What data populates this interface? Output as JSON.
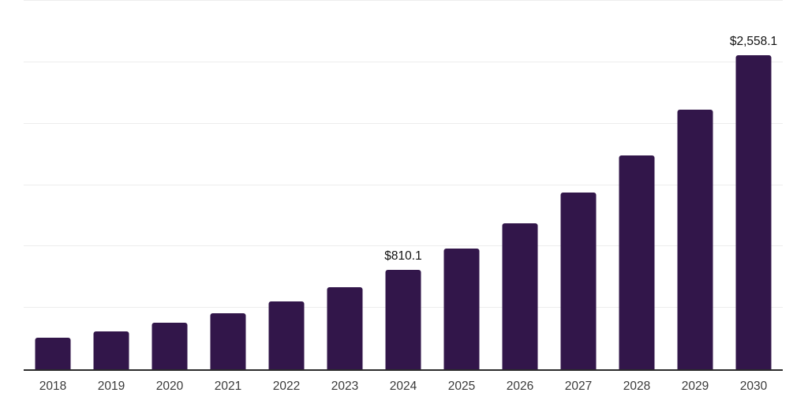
{
  "chart_data": {
    "type": "bar",
    "title": "",
    "categories": [
      "2018",
      "2019",
      "2020",
      "2021",
      "2022",
      "2023",
      "2024",
      "2025",
      "2026",
      "2027",
      "2028",
      "2029",
      "2030"
    ],
    "values": [
      256.5,
      310.7,
      376.4,
      455.9,
      552.2,
      668.9,
      810.1,
      981.3,
      1188.7,
      1439.9,
      1744.2,
      2112.8,
      2558.1
    ],
    "value_labels": {
      "2024": "$810.1",
      "2030": "$2,558.1"
    },
    "xlabel": "",
    "ylabel": "",
    "ylim": [
      0,
      3000
    ],
    "gridline_step": 500,
    "grid": "horizontal",
    "y_axis_tick_labels_visible": false,
    "legend_position": "none"
  },
  "colors": {
    "bar": "#32164a",
    "axis_line": "#2b2b2b",
    "gridline": "#ededed",
    "tick_label": "#3a3a3a",
    "value_label": "#111111",
    "background": "#ffffff"
  }
}
